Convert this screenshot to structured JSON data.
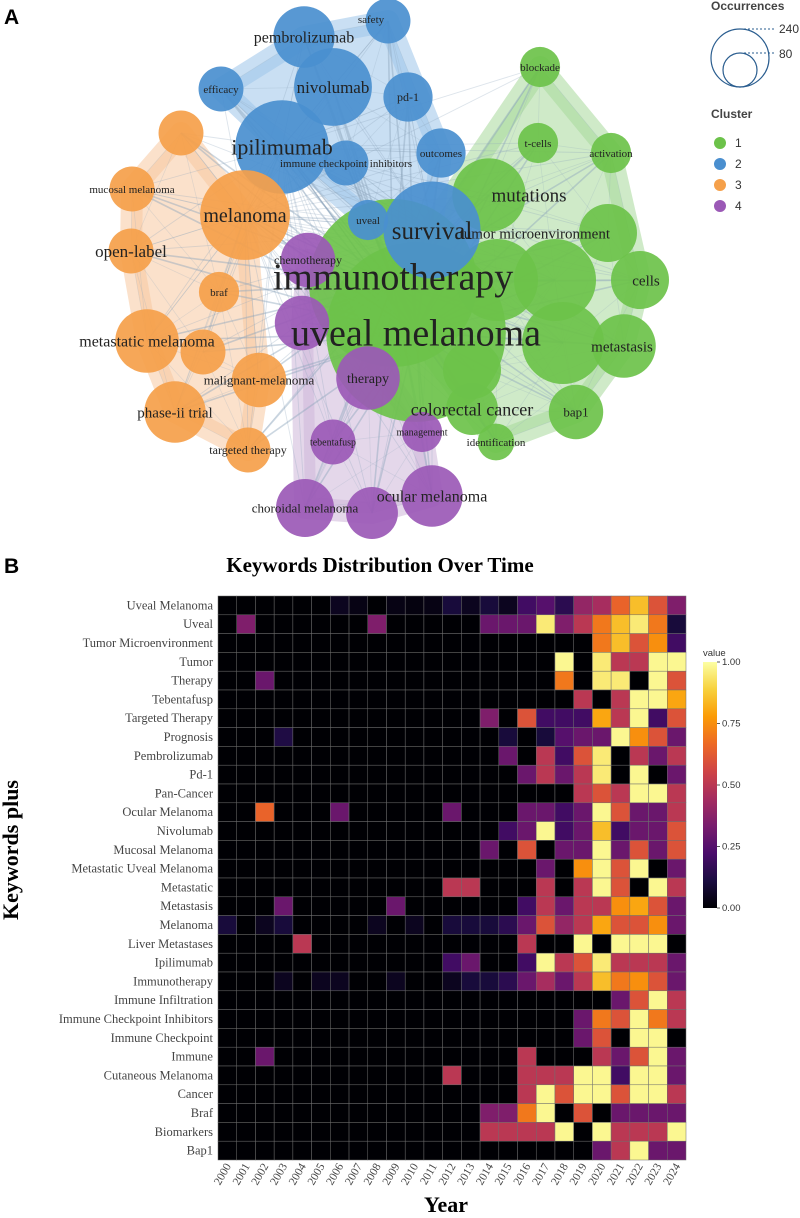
{
  "figure": {
    "panel_a_label": "A",
    "panel_b_label": "B"
  },
  "chart_data": [
    {
      "type": "network",
      "panel": "A",
      "title": "",
      "size_legend": {
        "title": "Occurrences",
        "values": [
          240,
          80
        ]
      },
      "cluster_legend": {
        "title": "Cluster",
        "items": [
          {
            "label": "1",
            "color": "#6cc24a"
          },
          {
            "label": "2",
            "color": "#4a8fcf"
          },
          {
            "label": "3",
            "color": "#f5a04a"
          },
          {
            "label": "4",
            "color": "#9b59b6"
          }
        ]
      },
      "hull_colors": {
        "1": "#a8d89a",
        "2": "#9cc4ea",
        "3": "#f8c9a0",
        "4": "#cdb6d9"
      },
      "node_colors": {
        "1": "#6cc24a",
        "2": "#4a8fcf",
        "3": "#f5a04a",
        "4": "#9b59b6"
      },
      "nodes": [
        {
          "label": "immunotherapy",
          "cluster": 1,
          "occurrences": 210
        },
        {
          "label": "uveal melanoma",
          "cluster": 1,
          "occurrences": 240
        },
        {
          "label": "mutations",
          "cluster": 1,
          "occurrences": 40
        },
        {
          "label": "tumor microenvironment",
          "cluster": 1,
          "occurrences": 25
        },
        {
          "label": "cells",
          "cluster": 1,
          "occurrences": 25
        },
        {
          "label": "metastasis",
          "cluster": 1,
          "occurrences": 30
        },
        {
          "label": "colorectal cancer",
          "cluster": 1,
          "occurrences": 20
        },
        {
          "label": "bap1",
          "cluster": 1,
          "occurrences": 22
        },
        {
          "label": "blockade",
          "cluster": 1,
          "occurrences": 12
        },
        {
          "label": "t-cells",
          "cluster": 1,
          "occurrences": 12
        },
        {
          "label": "activation",
          "cluster": 1,
          "occurrences": 12
        },
        {
          "label": "identification",
          "cluster": 1,
          "occurrences": 10
        },
        {
          "label": "",
          "cluster": 1,
          "occurrences": 50
        },
        {
          "label": "",
          "cluster": 1,
          "occurrences": 50
        },
        {
          "label": "",
          "cluster": 1,
          "occurrences": 50
        },
        {
          "label": "",
          "cluster": 1,
          "occurrences": 25
        },
        {
          "label": "survival",
          "cluster": 2,
          "occurrences": 70
        },
        {
          "label": "ipilimumab",
          "cluster": 2,
          "occurrences": 65
        },
        {
          "label": "nivolumab",
          "cluster": 2,
          "occurrences": 45
        },
        {
          "label": "pembrolizumab",
          "cluster": 2,
          "occurrences": 28
        },
        {
          "label": "safety",
          "cluster": 2,
          "occurrences": 15
        },
        {
          "label": "efficacy",
          "cluster": 2,
          "occurrences": 15
        },
        {
          "label": "pd-1",
          "cluster": 2,
          "occurrences": 18
        },
        {
          "label": "outcomes",
          "cluster": 2,
          "occurrences": 18
        },
        {
          "label": "immune checkpoint inhibitors",
          "cluster": 2,
          "occurrences": 15
        },
        {
          "label": "uveal",
          "cluster": 2,
          "occurrences": 12
        },
        {
          "label": "melanoma",
          "cluster": 3,
          "occurrences": 60
        },
        {
          "label": "open-label",
          "cluster": 3,
          "occurrences": 15
        },
        {
          "label": "mucosal melanoma",
          "cluster": 3,
          "occurrences": 15
        },
        {
          "label": "braf",
          "cluster": 3,
          "occurrences": 12
        },
        {
          "label": "metastatic melanoma",
          "cluster": 3,
          "occurrences": 30
        },
        {
          "label": "malignant-melanoma",
          "cluster": 3,
          "occurrences": 22
        },
        {
          "label": "phase-ii trial",
          "cluster": 3,
          "occurrences": 28
        },
        {
          "label": "targeted therapy",
          "cluster": 3,
          "occurrences": 15
        },
        {
          "label": "",
          "cluster": 3,
          "occurrences": 15
        },
        {
          "label": "",
          "cluster": 3,
          "occurrences": 15
        },
        {
          "label": "chemotherapy",
          "cluster": 4,
          "occurrences": 22
        },
        {
          "label": "therapy",
          "cluster": 4,
          "occurrences": 30
        },
        {
          "label": "tebentafusp",
          "cluster": 4,
          "occurrences": 15
        },
        {
          "label": "management",
          "cluster": 4,
          "occurrences": 12
        },
        {
          "label": "ocular melanoma",
          "cluster": 4,
          "occurrences": 28
        },
        {
          "label": "choroidal melanoma",
          "cluster": 4,
          "occurrences": 25
        },
        {
          "label": "",
          "cluster": 4,
          "occurrences": 22
        },
        {
          "label": "",
          "cluster": 4,
          "occurrences": 20
        }
      ]
    },
    {
      "type": "heatmap",
      "panel": "B",
      "title": "Keywords Distribution Over Time",
      "xlabel": "Year",
      "ylabel": "Keywords plus",
      "legend_title": "value",
      "value_range": [
        0,
        1
      ],
      "colorbar_ticks": [
        "1.00",
        "0.75",
        "0.50",
        "0.25",
        "0.00"
      ],
      "colorscale": [
        "#000004",
        "#1b0c41",
        "#4a0c6b",
        "#781c6d",
        "#a52c60",
        "#cf4446",
        "#ed6925",
        "#fb9b06",
        "#f7d13d",
        "#fcffa4"
      ],
      "x": [
        "2000",
        "2001",
        "2002",
        "2003",
        "2004",
        "2005",
        "2006",
        "2007",
        "2008",
        "2009",
        "2010",
        "2011",
        "2012",
        "2013",
        "2014",
        "2015",
        "2016",
        "2017",
        "2018",
        "2019",
        "2020",
        "2021",
        "2022",
        "2023",
        "2024"
      ],
      "y": [
        "Uveal Melanoma",
        "Uveal",
        "Tumor Microenvironment",
        "Tumor",
        "Therapy",
        "Tebentafusp",
        "Targeted Therapy",
        "Prognosis",
        "Pembrolizumab",
        "Pd-1",
        "Pan-Cancer",
        "Ocular Melanoma",
        "Nivolumab",
        "Mucosal Melanoma",
        "Metastatic Uveal Melanoma",
        "Metastatic",
        "Metastasis",
        "Melanoma",
        "Liver Metastases",
        "Ipilimumab",
        "Immunotherapy",
        "Immune Infiltration",
        "Immune Checkpoint Inhibitors",
        "Immune Checkpoint",
        "Immune",
        "Cutaneous Melanoma",
        "Cancer",
        "Braf",
        "Biomarkers",
        "Bap1"
      ],
      "values": [
        [
          0,
          0,
          0,
          0,
          0,
          0,
          0.05,
          0.03,
          0,
          0.03,
          0.02,
          0.03,
          0.1,
          0.05,
          0.1,
          0.05,
          0.2,
          0.25,
          0.15,
          0.4,
          0.45,
          0.65,
          0.85,
          0.6,
          0.35
        ],
        [
          0,
          0.35,
          0,
          0,
          0,
          0,
          0,
          0,
          0.35,
          0,
          0,
          0,
          0,
          0,
          0.3,
          0.3,
          0.3,
          0.95,
          0.35,
          0.5,
          0.7,
          0.85,
          0.95,
          0.7,
          0.1
        ],
        [
          0,
          0,
          0,
          0,
          0,
          0,
          0,
          0,
          0,
          0,
          0,
          0,
          0,
          0,
          0,
          0,
          0,
          0,
          0,
          0,
          0.7,
          0.85,
          0.6,
          0.75,
          0.2
        ],
        [
          0,
          0,
          0,
          0,
          0,
          0,
          0,
          0,
          0,
          0,
          0,
          0,
          0,
          0,
          0,
          0,
          0,
          0,
          0.98,
          0,
          0.95,
          0.5,
          0.5,
          0.98,
          0.98
        ],
        [
          0,
          0,
          0.3,
          0,
          0,
          0,
          0,
          0,
          0,
          0,
          0,
          0,
          0,
          0,
          0,
          0,
          0,
          0,
          0.7,
          0,
          0.95,
          0.95,
          0,
          0.98,
          0.6
        ],
        [
          0,
          0,
          0,
          0,
          0,
          0,
          0,
          0,
          0,
          0,
          0,
          0,
          0,
          0,
          0,
          0,
          0,
          0,
          0,
          0.5,
          0,
          0.5,
          0.98,
          0.98,
          0.8
        ],
        [
          0,
          0,
          0,
          0,
          0,
          0,
          0,
          0,
          0,
          0,
          0,
          0,
          0,
          0,
          0.35,
          0,
          0.6,
          0.2,
          0.2,
          0.2,
          0.8,
          0.5,
          0.98,
          0.2,
          0.6
        ],
        [
          0,
          0,
          0,
          0.12,
          0,
          0,
          0,
          0,
          0,
          0,
          0,
          0,
          0,
          0,
          0,
          0.1,
          0,
          0.1,
          0.25,
          0.3,
          0.3,
          0.98,
          0.75,
          0.6,
          0.3
        ],
        [
          0,
          0,
          0,
          0,
          0,
          0,
          0,
          0,
          0,
          0,
          0,
          0,
          0,
          0,
          0,
          0.3,
          0,
          0.5,
          0.2,
          0.6,
          0.95,
          0,
          0.5,
          0.3,
          0.5
        ],
        [
          0,
          0,
          0,
          0,
          0,
          0,
          0,
          0,
          0,
          0,
          0,
          0,
          0,
          0,
          0,
          0,
          0.3,
          0.5,
          0.3,
          0.5,
          0.95,
          0,
          0.98,
          0,
          0.3
        ],
        [
          0,
          0,
          0,
          0,
          0,
          0,
          0,
          0,
          0,
          0,
          0,
          0,
          0,
          0,
          0,
          0,
          0,
          0,
          0,
          0.5,
          0.6,
          0.5,
          0.98,
          0.98,
          0.5
        ],
        [
          0,
          0,
          0.65,
          0,
          0,
          0,
          0.3,
          0,
          0,
          0,
          0,
          0,
          0.3,
          0,
          0,
          0,
          0.3,
          0.3,
          0.2,
          0.3,
          0.98,
          0.6,
          0.3,
          0.3,
          0.5
        ],
        [
          0,
          0,
          0,
          0,
          0,
          0,
          0,
          0,
          0,
          0,
          0,
          0,
          0,
          0,
          0,
          0.2,
          0.3,
          0.98,
          0.2,
          0.3,
          0.85,
          0.2,
          0.3,
          0.3,
          0.6
        ],
        [
          0,
          0,
          0,
          0,
          0,
          0,
          0,
          0,
          0,
          0,
          0,
          0,
          0,
          0,
          0.3,
          0,
          0.6,
          0,
          0.3,
          0.3,
          0.98,
          0.3,
          0.6,
          0.3,
          0.6
        ],
        [
          0,
          0,
          0,
          0,
          0,
          0,
          0,
          0,
          0,
          0,
          0,
          0,
          0,
          0,
          0,
          0,
          0,
          0.3,
          0,
          0.75,
          0.98,
          0.6,
          0.98,
          0,
          0.3
        ],
        [
          0,
          0,
          0,
          0,
          0,
          0,
          0,
          0,
          0,
          0,
          0,
          0,
          0.5,
          0.5,
          0,
          0,
          0,
          0.5,
          0,
          0.5,
          0.98,
          0.6,
          0,
          0.98,
          0.5
        ],
        [
          0,
          0,
          0,
          0.3,
          0,
          0,
          0,
          0,
          0,
          0.3,
          0,
          0,
          0,
          0,
          0,
          0,
          0.2,
          0.5,
          0.3,
          0.5,
          0.5,
          0.75,
          0.8,
          0.6,
          0.3
        ],
        [
          0.1,
          0,
          0.05,
          0.1,
          0,
          0,
          0,
          0,
          0.05,
          0,
          0.05,
          0,
          0.1,
          0.1,
          0.1,
          0.15,
          0.3,
          0.6,
          0.4,
          0.5,
          0.8,
          0.6,
          0.6,
          0.75,
          0.3
        ],
        [
          0,
          0,
          0,
          0,
          0.5,
          0,
          0,
          0,
          0,
          0,
          0,
          0,
          0,
          0,
          0,
          0,
          0.5,
          0,
          0,
          0.98,
          0,
          0.98,
          0.98,
          0.98,
          0
        ],
        [
          0,
          0,
          0,
          0,
          0,
          0,
          0,
          0,
          0,
          0,
          0,
          0,
          0.2,
          0.3,
          0,
          0,
          0.2,
          0.98,
          0.5,
          0.6,
          0.95,
          0.5,
          0.5,
          0.5,
          0.3
        ],
        [
          0,
          0,
          0,
          0.05,
          0,
          0.05,
          0.05,
          0,
          0,
          0.05,
          0,
          0,
          0.05,
          0.1,
          0.1,
          0.15,
          0.3,
          0.45,
          0.3,
          0.5,
          0.85,
          0.7,
          0.75,
          0.6,
          0.3
        ],
        [
          0,
          0,
          0,
          0,
          0,
          0,
          0,
          0,
          0,
          0,
          0,
          0,
          0,
          0,
          0,
          0,
          0,
          0,
          0,
          0,
          0,
          0.3,
          0.6,
          0.98,
          0.5
        ],
        [
          0,
          0,
          0,
          0,
          0,
          0,
          0,
          0,
          0,
          0,
          0,
          0,
          0,
          0,
          0,
          0,
          0,
          0,
          0,
          0.3,
          0.7,
          0.6,
          0.98,
          0.7,
          0.5
        ],
        [
          0,
          0,
          0,
          0,
          0,
          0,
          0,
          0,
          0,
          0,
          0,
          0,
          0,
          0,
          0,
          0,
          0,
          0,
          0,
          0.3,
          0.6,
          0,
          0.98,
          0.98,
          0
        ],
        [
          0,
          0,
          0.3,
          0,
          0,
          0,
          0,
          0,
          0,
          0,
          0,
          0,
          0,
          0,
          0,
          0,
          0.5,
          0,
          0,
          0,
          0.5,
          0.3,
          0.6,
          0.98,
          0.3
        ],
        [
          0,
          0,
          0,
          0,
          0,
          0,
          0,
          0,
          0,
          0,
          0,
          0,
          0.5,
          0,
          0,
          0,
          0.5,
          0.5,
          0.5,
          0.98,
          0.98,
          0.2,
          0.98,
          0.98,
          0.3
        ],
        [
          0,
          0,
          0,
          0,
          0,
          0,
          0,
          0,
          0,
          0,
          0,
          0,
          0,
          0,
          0,
          0,
          0.5,
          0.98,
          0.6,
          0.98,
          0.98,
          0.6,
          0.98,
          0.98,
          0.5
        ],
        [
          0,
          0,
          0,
          0,
          0,
          0,
          0,
          0,
          0,
          0,
          0,
          0,
          0,
          0,
          0.35,
          0.35,
          0.7,
          0.98,
          0,
          0.6,
          0,
          0.3,
          0.3,
          0.3,
          0.3
        ],
        [
          0,
          0,
          0,
          0,
          0,
          0,
          0,
          0,
          0,
          0,
          0,
          0,
          0,
          0,
          0.5,
          0.5,
          0.5,
          0.5,
          0.98,
          0,
          0.98,
          0.5,
          0.5,
          0.5,
          0.98
        ],
        [
          0,
          0,
          0,
          0,
          0,
          0,
          0,
          0,
          0,
          0,
          0,
          0,
          0,
          0,
          0,
          0,
          0,
          0,
          0,
          0,
          0.3,
          0.5,
          0.98,
          0.3,
          0.3
        ]
      ]
    }
  ]
}
